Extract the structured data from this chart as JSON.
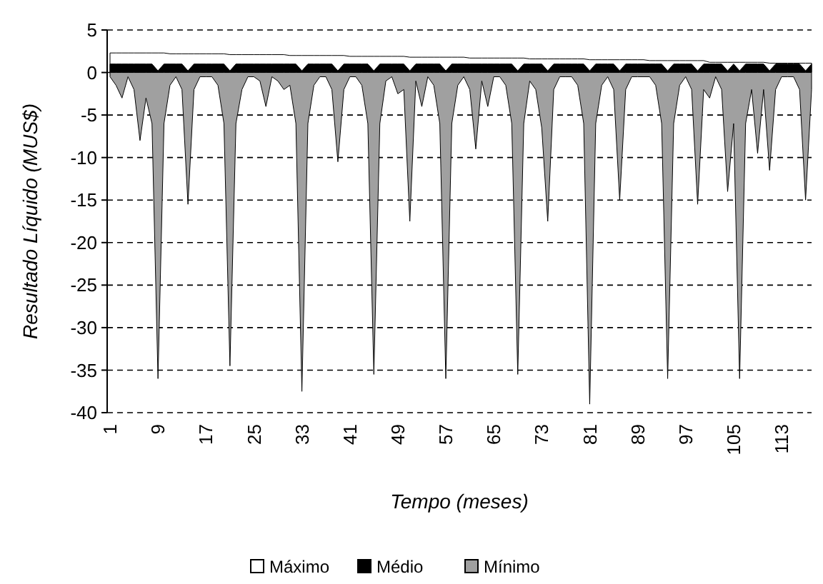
{
  "chart_data": {
    "type": "area",
    "xlabel": "Tempo (meses)",
    "ylabel": "Resultado Líquido (MUS$)",
    "categories": [
      "1",
      null,
      null,
      null,
      null,
      null,
      null,
      null,
      "9",
      null,
      null,
      null,
      null,
      null,
      null,
      null,
      "17",
      null,
      null,
      null,
      null,
      null,
      null,
      null,
      "25",
      null,
      null,
      null,
      null,
      null,
      null,
      null,
      "33",
      null,
      null,
      null,
      null,
      null,
      null,
      null,
      "41",
      null,
      null,
      null,
      null,
      null,
      null,
      null,
      "49",
      null,
      null,
      null,
      null,
      null,
      null,
      null,
      "57",
      null,
      null,
      null,
      null,
      null,
      null,
      null,
      "65",
      null,
      null,
      null,
      null,
      null,
      null,
      null,
      "73",
      null,
      null,
      null,
      null,
      null,
      null,
      null,
      "81",
      null,
      null,
      null,
      null,
      null,
      null,
      null,
      "89",
      null,
      null,
      null,
      null,
      null,
      null,
      null,
      "97",
      null,
      null,
      null,
      null,
      null,
      null,
      null,
      "105",
      null,
      null,
      null,
      null,
      null,
      null,
      null,
      "113",
      null,
      null,
      null,
      null,
      null
    ],
    "series": [
      {
        "name": "Máximo",
        "color": "#ffffff",
        "values": [
          2.3,
          2.3,
          2.3,
          2.3,
          2.3,
          2.3,
          2.3,
          2.3,
          2.3,
          2.3,
          2.2,
          2.2,
          2.2,
          2.2,
          2.2,
          2.2,
          2.2,
          2.2,
          2.2,
          2.2,
          2.1,
          2.1,
          2.1,
          2.1,
          2.1,
          2.1,
          2.1,
          2.1,
          2.1,
          2.1,
          2.0,
          2.0,
          2.0,
          2.0,
          2.0,
          2.0,
          2.0,
          2.0,
          2.0,
          2.0,
          1.9,
          1.9,
          1.9,
          1.9,
          1.9,
          1.9,
          1.9,
          1.9,
          1.9,
          1.9,
          1.8,
          1.8,
          1.8,
          1.8,
          1.8,
          1.8,
          1.8,
          1.8,
          1.8,
          1.8,
          1.7,
          1.7,
          1.7,
          1.7,
          1.7,
          1.7,
          1.7,
          1.7,
          1.7,
          1.7,
          1.6,
          1.6,
          1.6,
          1.6,
          1.6,
          1.6,
          1.6,
          1.6,
          1.6,
          1.6,
          1.5,
          1.5,
          1.5,
          1.5,
          1.5,
          1.5,
          1.5,
          1.5,
          1.5,
          1.5,
          1.4,
          1.4,
          1.4,
          1.4,
          1.4,
          1.4,
          1.4,
          1.4,
          1.4,
          1.4,
          1.2,
          1.2,
          1.2,
          1.2,
          1.2,
          1.2,
          1.2,
          1.2,
          1.2,
          1.2,
          1.1,
          1.1,
          1.1,
          1.1,
          1.1,
          1.1,
          1.1,
          1.1
        ]
      },
      {
        "name": "Médio",
        "color": "#000000",
        "values": [
          1,
          1,
          1,
          1,
          1,
          1,
          1,
          1,
          0.2,
          1,
          1,
          1,
          1,
          0.2,
          1,
          1,
          1,
          1,
          1,
          1,
          0.2,
          1,
          1,
          1,
          1,
          1,
          1,
          1,
          1,
          1,
          1,
          1,
          0.2,
          1,
          1,
          1,
          1,
          1,
          0.2,
          1,
          1,
          1,
          1,
          1,
          0.2,
          1,
          1,
          1,
          1,
          1,
          0.2,
          1,
          1,
          1,
          1,
          1,
          0.2,
          1,
          1,
          1,
          1,
          1,
          1,
          1,
          1,
          1,
          1,
          1,
          0.2,
          1,
          1,
          1,
          1,
          0.2,
          1,
          1,
          1,
          1,
          1,
          1,
          0.2,
          1,
          1,
          1,
          1,
          0.2,
          1,
          1,
          1,
          1,
          1,
          1,
          1,
          0.2,
          1,
          1,
          1,
          1,
          0.2,
          1,
          1,
          1,
          1,
          0.2,
          1,
          0.2,
          1,
          1,
          1,
          1,
          0.2,
          1,
          1,
          1,
          1,
          1,
          0.2,
          1
        ]
      },
      {
        "name": "Mínimo",
        "color": "#a0a0a0",
        "values": [
          -0.5,
          -1.5,
          -3,
          -0.5,
          -2,
          -8,
          -3,
          -6,
          -36,
          -6,
          -1.5,
          -0.5,
          -2,
          -15.5,
          -2,
          -0.5,
          -0.5,
          -0.5,
          -1.5,
          -6,
          -34.5,
          -6,
          -2,
          -0.5,
          -0.5,
          -1,
          -4,
          -0.5,
          -1,
          -2,
          -1.5,
          -6,
          -37.5,
          -6,
          -1.5,
          -0.5,
          -0.5,
          -2,
          -10.5,
          -2,
          -0.5,
          -0.5,
          -1.5,
          -6,
          -35.5,
          -6,
          -1,
          -0.5,
          -2.5,
          -2,
          -17.5,
          -1,
          -4,
          -0.5,
          -1.5,
          -6,
          -36,
          -6,
          -1.5,
          -0.5,
          -2,
          -9,
          -1,
          -4,
          -0.5,
          -0.5,
          -1.5,
          -6,
          -35.5,
          -6,
          -1,
          -2,
          -6.5,
          -17.5,
          -2,
          -0.5,
          -0.5,
          -0.5,
          -1.5,
          -6,
          -39,
          -6,
          -1.5,
          -0.5,
          -2,
          -15,
          -2,
          -0.5,
          -0.5,
          -0.5,
          -0.5,
          -1.5,
          -6,
          -36,
          -6,
          -1.5,
          -0.5,
          -2,
          -15.5,
          -2,
          -3,
          -0.5,
          -2,
          -14,
          -6,
          -36,
          -6,
          -2,
          -9.5,
          -2,
          -11.5,
          -2,
          -0.5,
          -0.5,
          -0.5,
          -2,
          -15,
          -2
        ]
      }
    ],
    "ylim": [
      -40,
      5
    ],
    "yticks": [
      -40,
      -35,
      -30,
      -25,
      -20,
      -15,
      -10,
      -5,
      0,
      5
    ],
    "grid": "y",
    "line_style": "dashed",
    "legend": "bottom"
  }
}
